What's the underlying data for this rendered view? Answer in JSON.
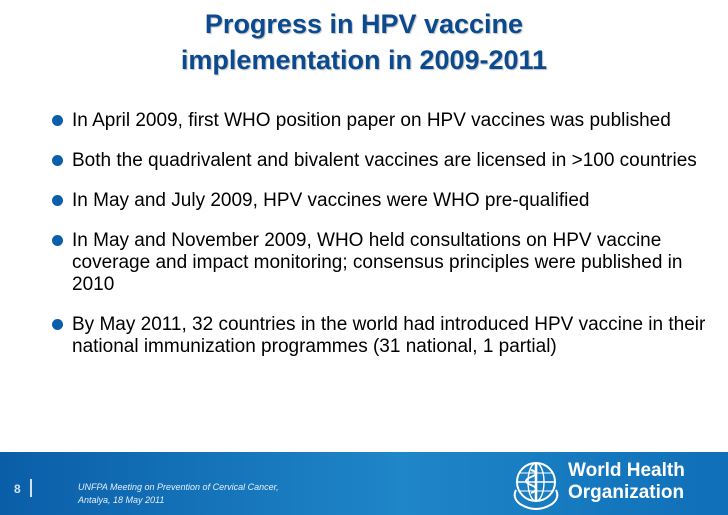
{
  "title": {
    "line1": "Progress in HPV vaccine",
    "line2": "implementation in 2009-2011"
  },
  "bullets": [
    "In April 2009, first WHO position paper on HPV vaccines was published",
    "Both the quadrivalent and bivalent vaccines are licensed in >100 countries",
    "In May and July 2009, HPV vaccines were WHO pre-qualified",
    "In May and November 2009, WHO held consultations on HPV vaccine coverage and impact monitoring; consensus principles were published in 2010",
    "By May 2011, 32 countries in the world had introduced HPV vaccine in their national immunization programmes (31 national, 1 partial)"
  ],
  "footer": {
    "slide_number": "8",
    "line1": "UNFPA Meeting on Prevention of Cervical Cancer,",
    "line2": "Antalya, 18 May 2011",
    "logo_line1": "World Health",
    "logo_line2": "Organization",
    "logo_icon": "who-emblem-icon"
  },
  "colors": {
    "title": "#0b4a8f",
    "bullet": "#0b5faa",
    "footer_bar": "#1677bf"
  }
}
